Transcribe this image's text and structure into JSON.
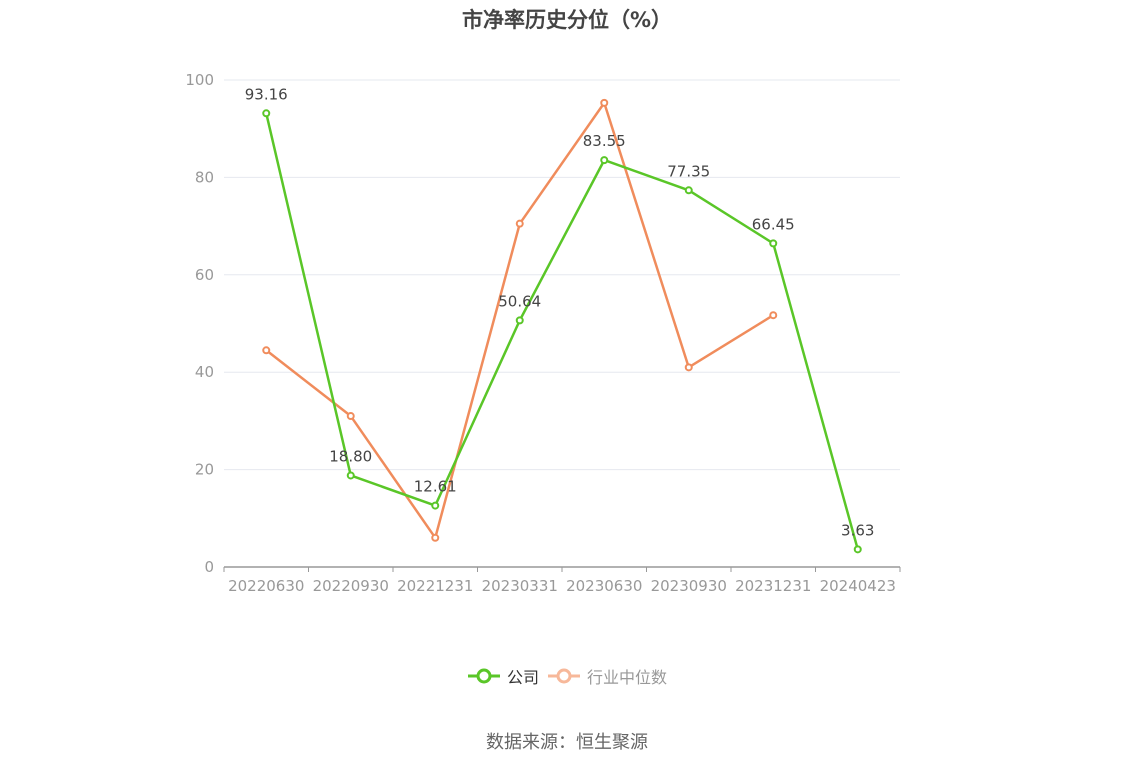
{
  "title": "市净率历史分位（%）",
  "source": "数据来源：恒生聚源",
  "colors": {
    "company": "#5ac628",
    "industry": "#f08c5c",
    "industry_legend": "#f7b89a",
    "grid": "#e6e8ef",
    "axis": "#999999"
  },
  "chart_data": {
    "type": "line",
    "title": "市净率历史分位（%）",
    "categories": [
      "20220630",
      "20220930",
      "20221231",
      "20230331",
      "20230630",
      "20230930",
      "20231231",
      "20240423"
    ],
    "ylim": [
      0,
      100
    ],
    "yticks": [
      0,
      20,
      40,
      60,
      80,
      100
    ],
    "grid": true,
    "legend_position": "bottom",
    "series": [
      {
        "name": "公司",
        "values": [
          93.16,
          18.8,
          12.61,
          50.64,
          83.55,
          77.35,
          66.45,
          3.63
        ],
        "labels": [
          "93.16",
          "18.80",
          "12.61",
          "50.64",
          "83.55",
          "77.35",
          "66.45",
          "3.63"
        ]
      },
      {
        "name": "行业中位数",
        "values": [
          44.5,
          31.0,
          6.0,
          70.5,
          95.3,
          41.0,
          51.7,
          null
        ]
      }
    ]
  }
}
